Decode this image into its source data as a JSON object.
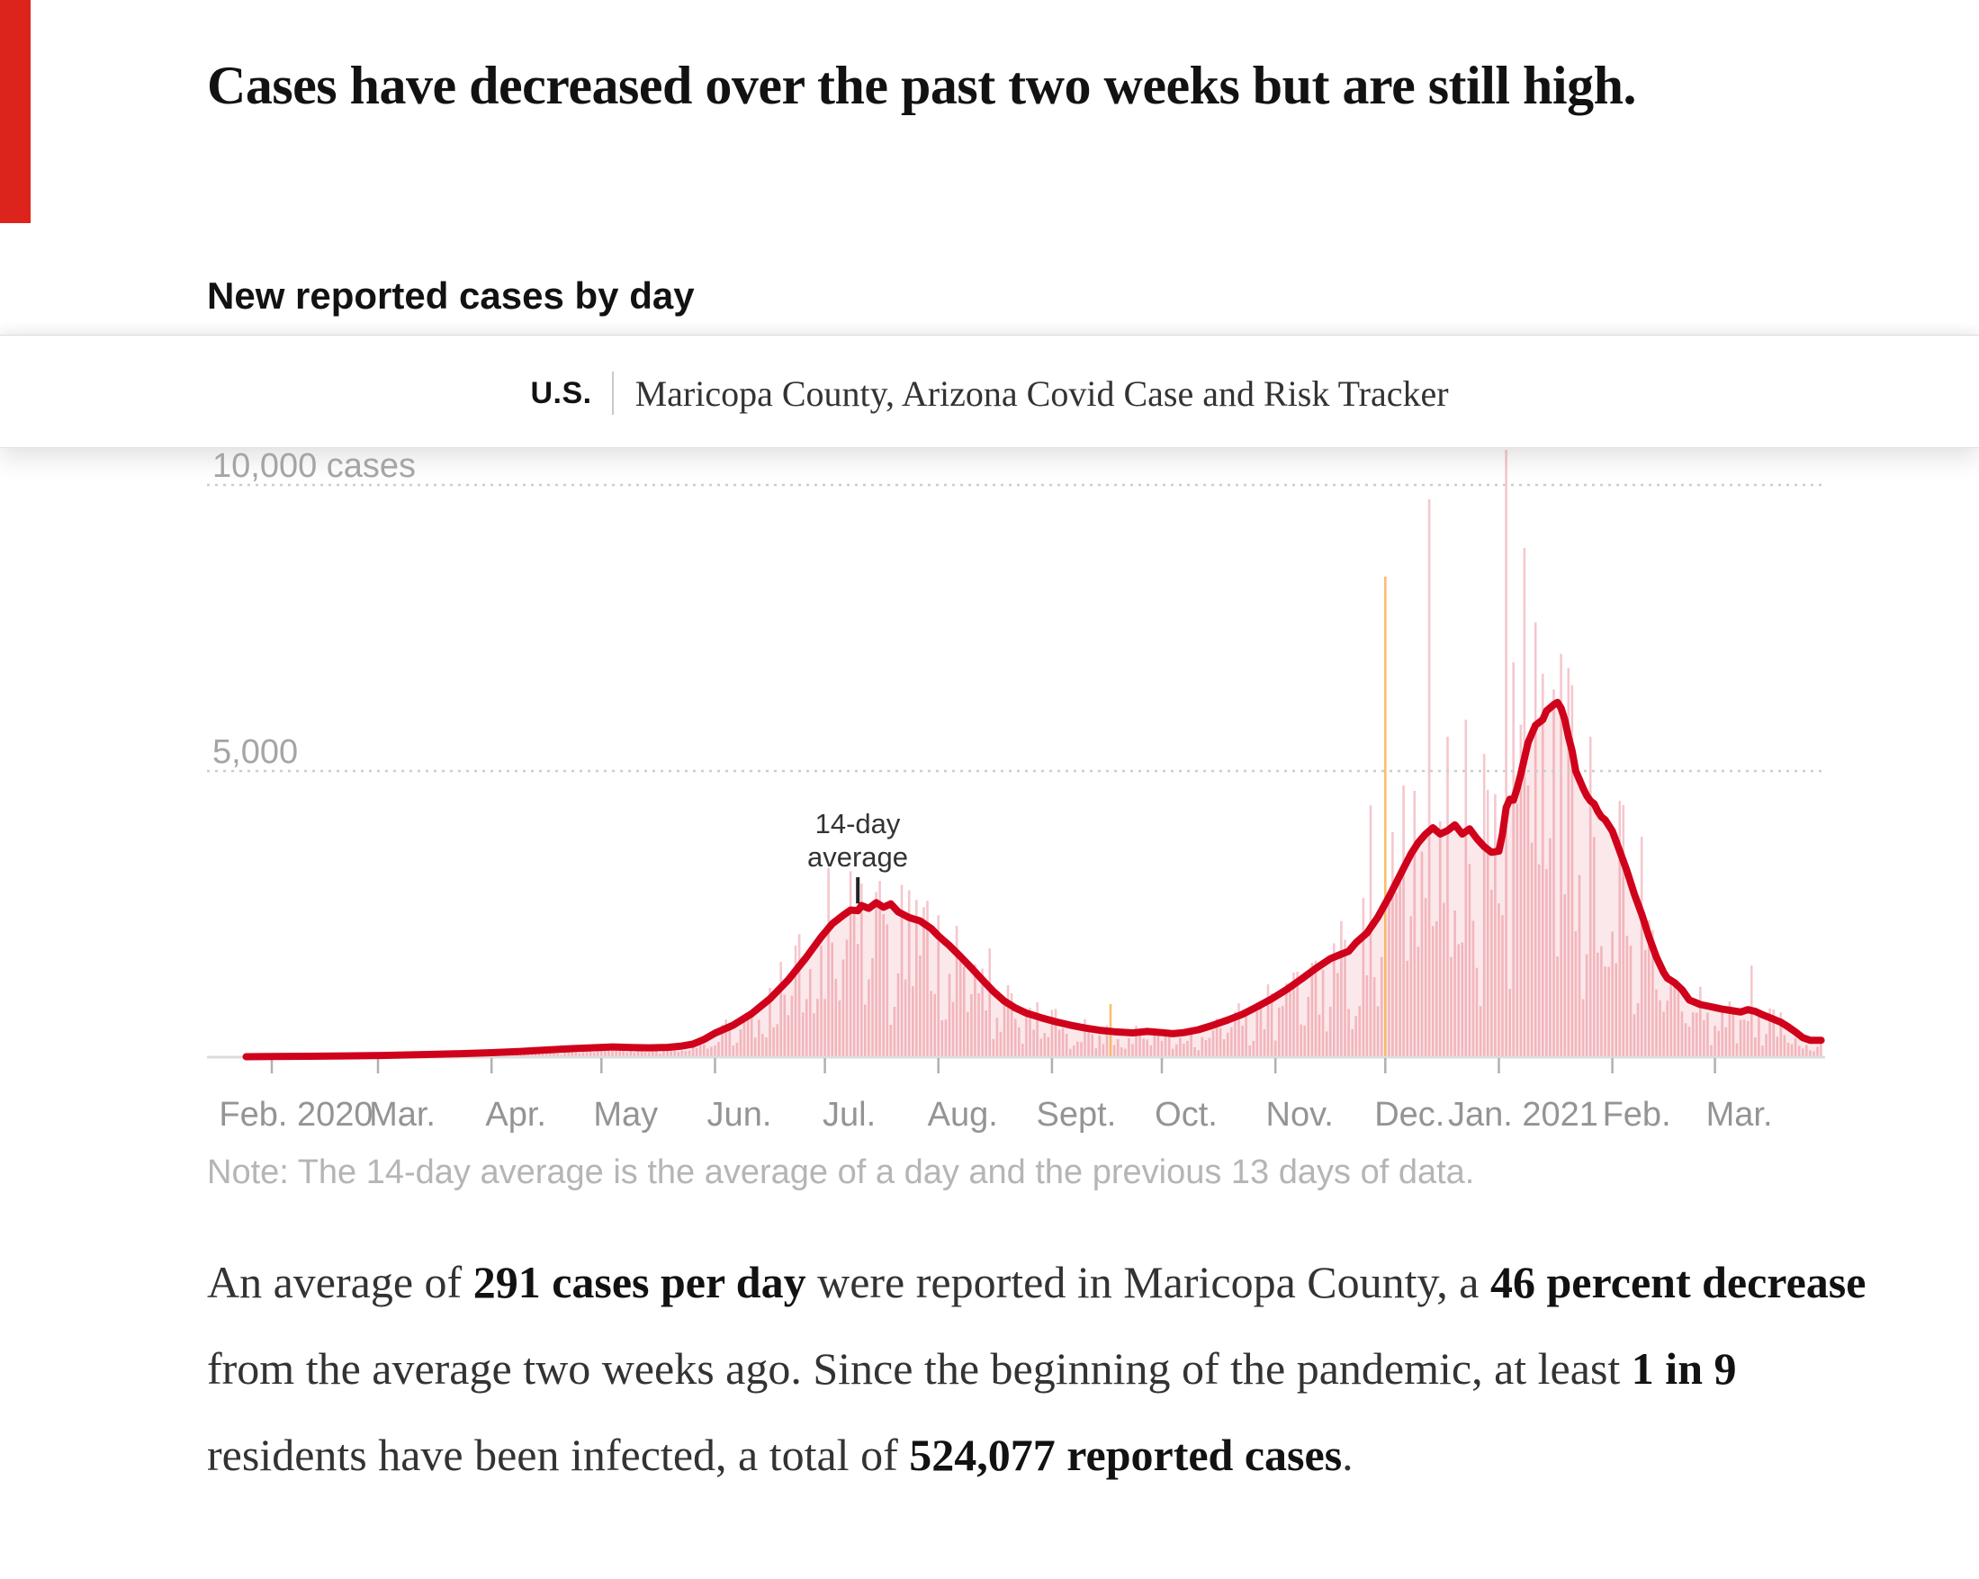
{
  "article": {
    "headline": "Cases have decreased over the past two weeks but are still high.",
    "chart_kicker": "New reported cases by day",
    "note": "Note: The 14-day average is the average of a day and the previous 13 days of data."
  },
  "tracker_bar": {
    "section_label": "U.S.",
    "title": "Maricopa County, Arizona Covid Case and Risk Tracker"
  },
  "chart_data": {
    "type": "bar",
    "title": "New reported cases by day",
    "ylabel": "cases",
    "ylim": [
      0,
      10600
    ],
    "grid": "dotted-horizontal",
    "y_ticks": [
      {
        "value": 10000,
        "label": "10,000 cases"
      },
      {
        "value": 5000,
        "label": "5,000"
      }
    ],
    "x_months": [
      {
        "label": "Feb. 2020",
        "start_day": 0
      },
      {
        "label": "Mar.",
        "start_day": 29
      },
      {
        "label": "Apr.",
        "start_day": 60
      },
      {
        "label": "May",
        "start_day": 90
      },
      {
        "label": "Jun.",
        "start_day": 121
      },
      {
        "label": "Jul.",
        "start_day": 151
      },
      {
        "label": "Aug.",
        "start_day": 182
      },
      {
        "label": "Sept.",
        "start_day": 213
      },
      {
        "label": "Oct.",
        "start_day": 243
      },
      {
        "label": "Nov.",
        "start_day": 274
      },
      {
        "label": "Dec.",
        "start_day": 304
      },
      {
        "label": "Jan. 2021",
        "start_day": 335
      },
      {
        "label": "Feb.",
        "start_day": 366
      },
      {
        "label": "Mar.",
        "start_day": 394
      }
    ],
    "series": [
      {
        "name": "14-day average",
        "style": "line"
      },
      {
        "name": "New reported cases",
        "style": "bar"
      }
    ],
    "avg_line_points": [
      [
        -7,
        8
      ],
      [
        0,
        12
      ],
      [
        10,
        16
      ],
      [
        20,
        22
      ],
      [
        30,
        30
      ],
      [
        40,
        42
      ],
      [
        50,
        58
      ],
      [
        60,
        78
      ],
      [
        68,
        100
      ],
      [
        75,
        125
      ],
      [
        82,
        150
      ],
      [
        88,
        165
      ],
      [
        93,
        180
      ],
      [
        98,
        170
      ],
      [
        103,
        163
      ],
      [
        108,
        172
      ],
      [
        112,
        195
      ],
      [
        115,
        230
      ],
      [
        118,
        310
      ],
      [
        121,
        420
      ],
      [
        126,
        560
      ],
      [
        131,
        760
      ],
      [
        136,
        1020
      ],
      [
        141,
        1350
      ],
      [
        146,
        1750
      ],
      [
        150,
        2100
      ],
      [
        153,
        2330
      ],
      [
        156,
        2480
      ],
      [
        158,
        2570
      ],
      [
        160,
        2560
      ],
      [
        161,
        2650
      ],
      [
        163,
        2600
      ],
      [
        165,
        2700
      ],
      [
        167,
        2620
      ],
      [
        169,
        2680
      ],
      [
        171,
        2540
      ],
      [
        174,
        2440
      ],
      [
        177,
        2380
      ],
      [
        180,
        2250
      ],
      [
        182,
        2120
      ],
      [
        185,
        1950
      ],
      [
        188,
        1760
      ],
      [
        191,
        1560
      ],
      [
        194,
        1350
      ],
      [
        197,
        1150
      ],
      [
        200,
        980
      ],
      [
        203,
        860
      ],
      [
        206,
        770
      ],
      [
        210,
        690
      ],
      [
        214,
        620
      ],
      [
        218,
        560
      ],
      [
        222,
        510
      ],
      [
        226,
        470
      ],
      [
        230,
        445
      ],
      [
        235,
        425
      ],
      [
        239,
        450
      ],
      [
        243,
        430
      ],
      [
        246,
        410
      ],
      [
        249,
        430
      ],
      [
        253,
        480
      ],
      [
        257,
        560
      ],
      [
        261,
        650
      ],
      [
        265,
        750
      ],
      [
        269,
        880
      ],
      [
        273,
        1020
      ],
      [
        277,
        1180
      ],
      [
        281,
        1360
      ],
      [
        285,
        1550
      ],
      [
        289,
        1720
      ],
      [
        292,
        1800
      ],
      [
        294,
        1850
      ],
      [
        296,
        2000
      ],
      [
        299,
        2170
      ],
      [
        302,
        2450
      ],
      [
        305,
        2800
      ],
      [
        307,
        3050
      ],
      [
        309,
        3300
      ],
      [
        311,
        3550
      ],
      [
        313,
        3750
      ],
      [
        315,
        3900
      ],
      [
        317,
        4010
      ],
      [
        319,
        3900
      ],
      [
        321,
        3960
      ],
      [
        323,
        4060
      ],
      [
        325,
        3900
      ],
      [
        327,
        3990
      ],
      [
        329,
        3820
      ],
      [
        331,
        3680
      ],
      [
        333,
        3580
      ],
      [
        335,
        3600
      ],
      [
        336,
        3900
      ],
      [
        337,
        4360
      ],
      [
        338,
        4510
      ],
      [
        339,
        4490
      ],
      [
        340,
        4700
      ],
      [
        341,
        4950
      ],
      [
        343,
        5500
      ],
      [
        345,
        5800
      ],
      [
        347,
        5900
      ],
      [
        348,
        6050
      ],
      [
        350,
        6160
      ],
      [
        351,
        6200
      ],
      [
        352,
        6100
      ],
      [
        353,
        5900
      ],
      [
        354,
        5600
      ],
      [
        355,
        5350
      ],
      [
        356,
        5000
      ],
      [
        357,
        4850
      ],
      [
        358,
        4700
      ],
      [
        359,
        4570
      ],
      [
        360,
        4480
      ],
      [
        361,
        4430
      ],
      [
        362,
        4300
      ],
      [
        363,
        4200
      ],
      [
        364,
        4150
      ],
      [
        365,
        4050
      ],
      [
        366,
        3950
      ],
      [
        368,
        3600
      ],
      [
        370,
        3250
      ],
      [
        372,
        2850
      ],
      [
        374,
        2500
      ],
      [
        376,
        2100
      ],
      [
        378,
        1750
      ],
      [
        380,
        1480
      ],
      [
        381,
        1380
      ],
      [
        383,
        1300
      ],
      [
        385,
        1180
      ],
      [
        387,
        1000
      ],
      [
        390,
        920
      ],
      [
        393,
        880
      ],
      [
        396,
        840
      ],
      [
        399,
        810
      ],
      [
        401,
        790
      ],
      [
        403,
        830
      ],
      [
        405,
        800
      ],
      [
        407,
        740
      ],
      [
        409,
        690
      ],
      [
        412,
        610
      ],
      [
        414,
        530
      ],
      [
        416,
        440
      ],
      [
        418,
        340
      ],
      [
        420,
        295
      ],
      [
        423,
        295
      ]
    ],
    "daily_outliers": [
      {
        "day": 152,
        "value": 3300
      },
      {
        "day": 158,
        "value": 3250
      },
      {
        "day": 166,
        "value": 3080
      },
      {
        "day": 176,
        "value": 2750
      },
      {
        "day": 182,
        "value": 2480
      },
      {
        "day": 196,
        "value": 1900
      },
      {
        "day": 229,
        "value": 930,
        "anomaly": true
      },
      {
        "day": 300,
        "value": 4400
      },
      {
        "day": 304,
        "value": 8400,
        "anomaly": true
      },
      {
        "day": 309,
        "value": 4750
      },
      {
        "day": 316,
        "value": 9750
      },
      {
        "day": 321,
        "value": 5600
      },
      {
        "day": 326,
        "value": 5900
      },
      {
        "day": 331,
        "value": 5300
      },
      {
        "day": 337,
        "value": 12500
      },
      {
        "day": 339,
        "value": 6900
      },
      {
        "day": 342,
        "value": 8900
      },
      {
        "day": 345,
        "value": 7600
      },
      {
        "day": 347,
        "value": 6700
      },
      {
        "day": 352,
        "value": 7050
      },
      {
        "day": 355,
        "value": 6500
      },
      {
        "day": 360,
        "value": 5600
      },
      {
        "day": 374,
        "value": 3850
      },
      {
        "day": 404,
        "value": 1600
      }
    ],
    "annotation": {
      "label": "14-day average",
      "day": 160
    },
    "colors": {
      "line": "#d0021b",
      "bar": "rgba(208,2,27,0.22)",
      "area": "rgba(208,2,27,0.09)",
      "anomaly_bar": "rgba(243,164,50,0.70)",
      "gridline": "#cdcdcd",
      "baseline": "#dcdcdc",
      "tick": "#b0b0b0",
      "pointer": "#222222"
    }
  },
  "footer_paragraph": {
    "segments": [
      {
        "text": "An average of "
      },
      {
        "text": "291 cases per day",
        "bold": true
      },
      {
        "text": " were reported in Maricopa County, a "
      },
      {
        "text": "46 percent decrease",
        "bold": true
      },
      {
        "text": " from the average two weeks ago. Since the beginning of the pandemic, at least "
      },
      {
        "text": "1 in 9",
        "bold": true
      },
      {
        "text": " residents have been infected, a total of "
      },
      {
        "text": "524,077 reported cases",
        "bold": true
      },
      {
        "text": "."
      }
    ]
  }
}
